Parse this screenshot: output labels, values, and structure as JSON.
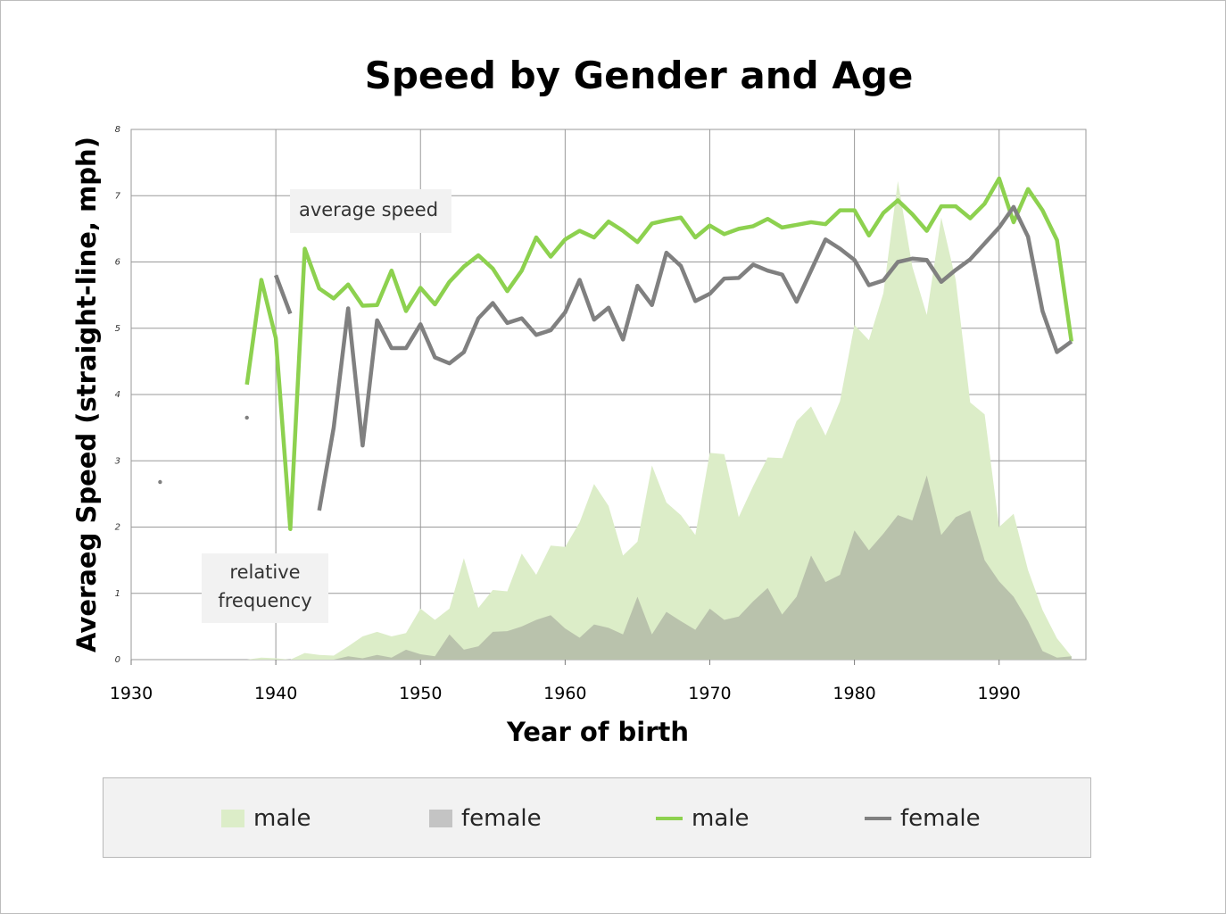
{
  "chart_data": {
    "type": "line",
    "title": "Speed by Gender and Age",
    "xlabel": "Year of birth",
    "ylabel": "Averaeg Speed (straight-line, mph)",
    "xlim": [
      1930,
      1996
    ],
    "ylim": [
      0,
      8
    ],
    "x_ticks": [
      1930,
      1940,
      1950,
      1960,
      1970,
      1980,
      1990
    ],
    "y_ticks": [
      0,
      1,
      2,
      3,
      4,
      5,
      6,
      7,
      8
    ],
    "grid": true,
    "legend_position": "bottom",
    "annotations": [
      "average speed",
      "relative\nfrequency"
    ],
    "area_series": [
      {
        "name": "male",
        "color": "#dcedc8",
        "x": [
          1938,
          1939,
          1940,
          1941,
          1942,
          1943,
          1944,
          1945,
          1946,
          1947,
          1948,
          1949,
          1950,
          1951,
          1952,
          1953,
          1954,
          1955,
          1956,
          1957,
          1958,
          1959,
          1960,
          1961,
          1962,
          1963,
          1964,
          1965,
          1966,
          1967,
          1968,
          1969,
          1970,
          1971,
          1972,
          1973,
          1974,
          1975,
          1976,
          1977,
          1978,
          1979,
          1980,
          1981,
          1982,
          1983,
          1984,
          1985,
          1986,
          1987,
          1988,
          1989,
          1990,
          1991,
          1992,
          1993,
          1994,
          1995
        ],
        "values": [
          0,
          0.03,
          0.02,
          0,
          0.1,
          0.07,
          0.06,
          0.2,
          0.35,
          0.42,
          0.35,
          0.4,
          0.77,
          0.6,
          0.77,
          1.53,
          0.78,
          1.05,
          1.03,
          1.6,
          1.28,
          1.72,
          1.7,
          2.07,
          2.65,
          2.32,
          1.57,
          1.78,
          2.93,
          2.37,
          2.18,
          1.88,
          3.12,
          3.1,
          2.15,
          2.62,
          3.05,
          3.04,
          3.6,
          3.82,
          3.38,
          3.9,
          5.05,
          4.82,
          5.53,
          7.22,
          5.93,
          5.2,
          6.67,
          5.73,
          3.88,
          3.7,
          2.0,
          2.2,
          1.35,
          0.75,
          0.32,
          0.05
        ]
      },
      {
        "name": "female",
        "color": "#b9c2ac",
        "x": [
          1938,
          1939,
          1940,
          1941,
          1942,
          1943,
          1944,
          1945,
          1946,
          1947,
          1948,
          1949,
          1950,
          1951,
          1952,
          1953,
          1954,
          1955,
          1956,
          1957,
          1958,
          1959,
          1960,
          1961,
          1962,
          1963,
          1964,
          1965,
          1966,
          1967,
          1968,
          1969,
          1970,
          1971,
          1972,
          1973,
          1974,
          1975,
          1976,
          1977,
          1978,
          1979,
          1980,
          1981,
          1982,
          1983,
          1984,
          1985,
          1986,
          1987,
          1988,
          1989,
          1990,
          1991,
          1992,
          1993,
          1994,
          1995
        ],
        "values": [
          0,
          0,
          0,
          0,
          0,
          0,
          0,
          0.05,
          0.02,
          0.07,
          0.03,
          0.15,
          0.08,
          0.05,
          0.38,
          0.15,
          0.2,
          0.42,
          0.43,
          0.5,
          0.6,
          0.67,
          0.47,
          0.33,
          0.53,
          0.48,
          0.38,
          0.95,
          0.38,
          0.72,
          0.58,
          0.45,
          0.77,
          0.6,
          0.65,
          0.88,
          1.08,
          0.68,
          0.95,
          1.57,
          1.17,
          1.28,
          1.95,
          1.65,
          1.9,
          2.18,
          2.1,
          2.78,
          1.88,
          2.15,
          2.25,
          1.5,
          1.18,
          0.95,
          0.58,
          0.13,
          0.03,
          0.05
        ]
      }
    ],
    "line_series": [
      {
        "name": "male",
        "color": "#8dd14f",
        "x": [
          1938,
          1939,
          1940,
          1941,
          1942,
          1943,
          1944,
          1945,
          1946,
          1947,
          1948,
          1949,
          1950,
          1951,
          1952,
          1953,
          1954,
          1955,
          1956,
          1957,
          1958,
          1959,
          1960,
          1961,
          1962,
          1963,
          1964,
          1965,
          1966,
          1967,
          1968,
          1969,
          1970,
          1971,
          1972,
          1973,
          1974,
          1975,
          1976,
          1977,
          1978,
          1979,
          1980,
          1981,
          1982,
          1983,
          1984,
          1985,
          1986,
          1987,
          1988,
          1989,
          1990,
          1991,
          1992,
          1993,
          1994,
          1995
        ],
        "values": [
          4.15,
          5.73,
          4.85,
          1.97,
          6.2,
          5.6,
          5.45,
          5.66,
          5.34,
          5.35,
          5.87,
          5.26,
          5.61,
          5.36,
          5.7,
          5.93,
          6.1,
          5.9,
          5.56,
          5.87,
          6.37,
          6.08,
          6.34,
          6.47,
          6.37,
          6.61,
          6.47,
          6.3,
          6.58,
          6.63,
          6.67,
          6.37,
          6.55,
          6.42,
          6.5,
          6.54,
          6.65,
          6.52,
          6.56,
          6.6,
          6.57,
          6.78,
          6.78,
          6.4,
          6.74,
          6.93,
          6.72,
          6.47,
          6.84,
          6.84,
          6.66,
          6.88,
          7.26,
          6.6,
          7.1,
          6.78,
          6.33,
          4.8
        ]
      },
      {
        "name": "female",
        "color": "#808080",
        "x": [
          1940,
          1941,
          1942,
          1943,
          1944,
          1945,
          1946,
          1947,
          1948,
          1949,
          1950,
          1951,
          1952,
          1953,
          1954,
          1955,
          1956,
          1957,
          1958,
          1959,
          1960,
          1961,
          1962,
          1963,
          1964,
          1965,
          1966,
          1967,
          1968,
          1969,
          1970,
          1971,
          1972,
          1973,
          1974,
          1975,
          1976,
          1977,
          1978,
          1979,
          1980,
          1981,
          1982,
          1983,
          1984,
          1985,
          1986,
          1987,
          1988,
          1989,
          1990,
          1991,
          1992,
          1993,
          1994,
          1995
        ],
        "values": [
          5.8,
          5.22,
          null,
          2.25,
          3.5,
          5.3,
          3.23,
          5.12,
          4.7,
          4.7,
          5.06,
          4.56,
          4.47,
          4.64,
          5.15,
          5.38,
          5.08,
          5.15,
          4.9,
          4.97,
          5.24,
          5.73,
          5.13,
          5.31,
          4.83,
          5.64,
          5.35,
          6.14,
          5.94,
          5.41,
          5.52,
          5.75,
          5.76,
          5.96,
          5.87,
          5.81,
          5.4,
          5.87,
          6.34,
          6.2,
          6.03,
          5.65,
          5.72,
          6.0,
          6.05,
          6.03,
          5.7,
          5.88,
          6.04,
          6.28,
          6.52,
          6.83,
          6.38,
          5.26,
          4.64,
          4.8
        ]
      }
    ],
    "points": [
      {
        "name": "female",
        "x": 1932,
        "y": 2.68
      },
      {
        "name": "female",
        "x": 1938,
        "y": 3.65
      }
    ]
  },
  "legend": {
    "items": [
      {
        "label": "male",
        "kind": "area",
        "color": "#dcedc8"
      },
      {
        "label": "female",
        "kind": "area",
        "color": "#c4c4c4"
      },
      {
        "label": "male",
        "kind": "line",
        "color": "#8dd14f"
      },
      {
        "label": "female",
        "kind": "line",
        "color": "#808080"
      }
    ]
  }
}
